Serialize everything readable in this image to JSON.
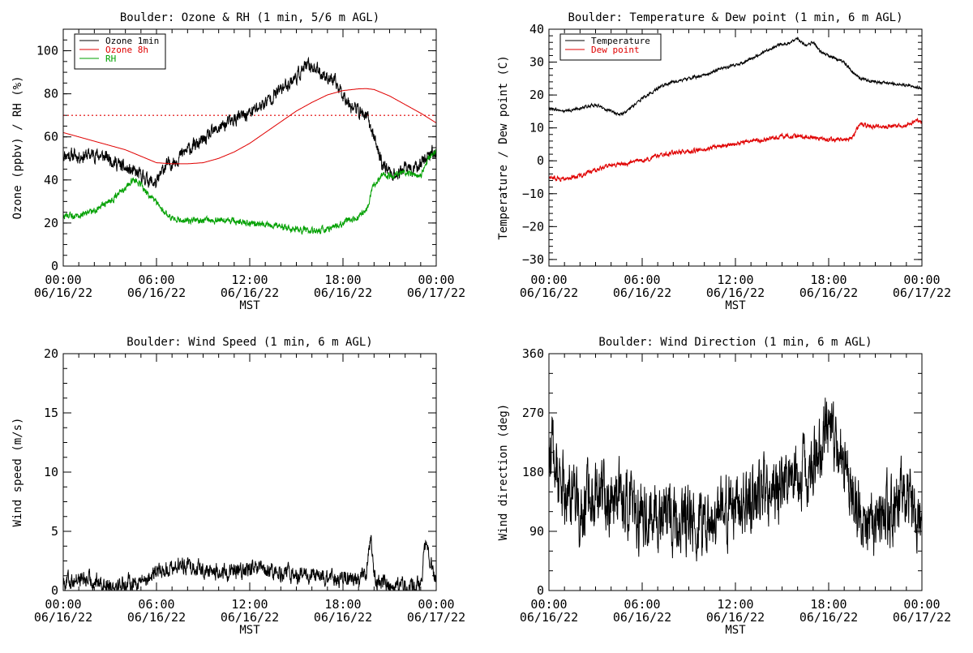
{
  "charts": [
    {
      "title": "Boulder: Ozone & RH (1 min, 5/6 m AGL)",
      "ylabel": "Ozone (ppbv) / RH (%)",
      "xlabel": "MST",
      "yticks": [
        "0",
        "20",
        "40",
        "60",
        "80",
        "100"
      ],
      "xticks": [
        {
          "time": "00:00",
          "date": "06/16/22"
        },
        {
          "time": "06:00",
          "date": "06/16/22"
        },
        {
          "time": "12:00",
          "date": "06/16/22"
        },
        {
          "time": "18:00",
          "date": "06/16/22"
        },
        {
          "time": "00:00",
          "date": "06/17/22"
        }
      ],
      "legend": [
        {
          "label": "Ozone 1min",
          "color": "#000000"
        },
        {
          "label": "Ozone 8h",
          "color": "#e00000"
        },
        {
          "label": "RH",
          "color": "#00a000"
        }
      ]
    },
    {
      "title": "Boulder: Temperature & Dew point (1 min, 6 m AGL)",
      "ylabel": "Temperature / Dew point (C)",
      "xlabel": "MST",
      "yticks": [
        "−30",
        "−20",
        "−10",
        "0",
        "10",
        "20",
        "30",
        "40"
      ],
      "xticks": [
        {
          "time": "00:00",
          "date": "06/16/22"
        },
        {
          "time": "06:00",
          "date": "06/16/22"
        },
        {
          "time": "12:00",
          "date": "06/16/22"
        },
        {
          "time": "18:00",
          "date": "06/16/22"
        },
        {
          "time": "00:00",
          "date": "06/17/22"
        }
      ],
      "legend": [
        {
          "label": "Temperature",
          "color": "#000000"
        },
        {
          "label": "Dew point",
          "color": "#e00000"
        }
      ]
    },
    {
      "title": "Boulder: Wind Speed (1 min, 6 m AGL)",
      "ylabel": "Wind speed (m/s)",
      "xlabel": "MST",
      "yticks": [
        "0",
        "5",
        "10",
        "15",
        "20"
      ],
      "xticks": [
        {
          "time": "00:00",
          "date": "06/16/22"
        },
        {
          "time": "06:00",
          "date": "06/16/22"
        },
        {
          "time": "12:00",
          "date": "06/16/22"
        },
        {
          "time": "18:00",
          "date": "06/16/22"
        },
        {
          "time": "00:00",
          "date": "06/17/22"
        }
      ],
      "legend": []
    },
    {
      "title": "Boulder: Wind Direction (1 min, 6 m AGL)",
      "ylabel": "Wind direction (deg)",
      "xlabel": "MST",
      "yticks": [
        "0",
        "90",
        "180",
        "270",
        "360"
      ],
      "xticks": [
        {
          "time": "00:00",
          "date": "06/16/22"
        },
        {
          "time": "06:00",
          "date": "06/16/22"
        },
        {
          "time": "12:00",
          "date": "06/16/22"
        },
        {
          "time": "18:00",
          "date": "06/16/22"
        },
        {
          "time": "00:00",
          "date": "06/17/22"
        }
      ],
      "legend": []
    }
  ],
  "chart_data": [
    {
      "type": "line",
      "title": "Boulder: Ozone & RH (1 min, 5/6 m AGL)",
      "xlabel": "MST",
      "ylabel": "Ozone (ppbv) / RH (%)",
      "x_unit": "hours",
      "xlim": [
        0,
        24
      ],
      "ylim": [
        0,
        110
      ],
      "grid": false,
      "legend_position": "top-left",
      "reference_lines": [
        {
          "y": 70,
          "color": "#e00000",
          "style": "dotted"
        }
      ],
      "series": [
        {
          "name": "Ozone 1min",
          "color": "#000000",
          "noise": 2.5,
          "x": [
            0,
            1,
            2,
            3,
            4,
            5,
            5.5,
            6,
            6.5,
            7,
            8,
            9,
            10,
            11,
            12,
            13,
            14,
            15,
            15.5,
            16,
            16.5,
            17,
            17.5,
            18,
            18.5,
            19,
            19.5,
            20,
            20.5,
            21,
            21.5,
            22,
            22.5,
            23,
            23.5,
            24
          ],
          "y": [
            52,
            51,
            52,
            50,
            45,
            42,
            40,
            38,
            46,
            48,
            54,
            58,
            64,
            68,
            71,
            76,
            82,
            88,
            92,
            93,
            90,
            88,
            85,
            80,
            75,
            72,
            70,
            60,
            48,
            44,
            42,
            46,
            44,
            48,
            52,
            53
          ]
        },
        {
          "name": "Ozone 8h",
          "color": "#e00000",
          "noise": 0,
          "x": [
            0,
            1,
            2,
            3,
            4,
            5,
            6,
            7,
            8,
            9,
            10,
            11,
            12,
            13,
            14,
            15,
            16,
            17,
            18,
            19,
            19.5,
            20,
            21,
            22,
            23,
            24
          ],
          "y": [
            62,
            60,
            58,
            56,
            54,
            51,
            48,
            47.5,
            47.5,
            48,
            50,
            53,
            57,
            62,
            67,
            72,
            76,
            79.5,
            81.5,
            82.3,
            82.4,
            82,
            79,
            75,
            71,
            66.5
          ]
        },
        {
          "name": "RH",
          "color": "#00a000",
          "noise": 1.2,
          "x": [
            0,
            1,
            2,
            3,
            3.5,
            4,
            4.5,
            5,
            5.5,
            6,
            6.5,
            7,
            8,
            9,
            10,
            11,
            12,
            13,
            14,
            15,
            16,
            17,
            18,
            19,
            19.5,
            20,
            20.5,
            21,
            22,
            23,
            23.5,
            24
          ],
          "y": [
            23,
            24,
            26,
            30,
            33,
            36,
            40,
            38,
            33,
            29,
            25,
            22,
            21,
            21,
            21,
            21,
            20,
            19,
            18,
            17,
            16,
            17,
            20,
            23,
            26,
            38,
            42,
            42,
            43,
            42,
            50,
            53
          ]
        }
      ]
    },
    {
      "type": "line",
      "title": "Boulder: Temperature & Dew point (1 min, 6 m AGL)",
      "xlabel": "MST",
      "ylabel": "Temperature / Dew point (C)",
      "x_unit": "hours",
      "xlim": [
        0,
        24
      ],
      "ylim": [
        -32,
        40
      ],
      "grid": false,
      "legend_position": "top-left",
      "series": [
        {
          "name": "Temperature",
          "color": "#000000",
          "noise": 0.35,
          "x": [
            0,
            1,
            2,
            3,
            4,
            4.5,
            5,
            6,
            7,
            8,
            9,
            10,
            11,
            12,
            13,
            14,
            15,
            15.5,
            16,
            16.5,
            17,
            17.5,
            18,
            19,
            19.5,
            20,
            21,
            22,
            23,
            24
          ],
          "y": [
            16,
            15,
            16,
            17,
            15,
            14,
            15,
            19,
            22,
            24,
            25,
            26,
            28,
            29,
            31,
            33.5,
            35.5,
            36,
            37,
            35,
            36,
            33,
            32,
            30,
            27,
            25,
            24,
            23.5,
            23,
            22
          ]
        },
        {
          "name": "Dew point",
          "color": "#e00000",
          "noise": 0.5,
          "x": [
            0,
            1,
            2,
            3,
            4,
            5,
            5.5,
            6,
            7,
            8,
            9,
            10,
            11,
            12,
            13,
            14,
            15,
            16,
            17,
            18,
            19,
            19.5,
            20,
            21,
            22,
            23,
            23.5,
            24
          ],
          "y": [
            -5,
            -5.5,
            -4.5,
            -3,
            -1,
            -1,
            0,
            0,
            1.5,
            2.5,
            3,
            3.5,
            4.5,
            5,
            6,
            6.5,
            7.5,
            7.5,
            7,
            6.5,
            6.5,
            7,
            11,
            10.5,
            10.5,
            10.5,
            12,
            12
          ]
        }
      ]
    },
    {
      "type": "line",
      "title": "Boulder: Wind Speed (1 min, 6 m AGL)",
      "xlabel": "MST",
      "ylabel": "Wind speed (m/s)",
      "x_unit": "hours",
      "xlim": [
        0,
        24
      ],
      "ylim": [
        0,
        20
      ],
      "grid": false,
      "series": [
        {
          "name": "",
          "color": "#000000",
          "noise": 0.55,
          "x": [
            0,
            1,
            2,
            3,
            4,
            5,
            6,
            7,
            8,
            9,
            10,
            11,
            12,
            13,
            14,
            15,
            16,
            17,
            18,
            19,
            19.5,
            19.8,
            20,
            21,
            22,
            22.5,
            23,
            23.3,
            23.6,
            24
          ],
          "y": [
            0.8,
            1,
            0.8,
            0.5,
            0.6,
            0.8,
            1.5,
            2,
            2.2,
            1.8,
            1.5,
            1.5,
            1.8,
            1.6,
            1.5,
            1.3,
            1.2,
            1.0,
            1.0,
            1.0,
            1.5,
            4.5,
            1.0,
            0.5,
            0.4,
            0.3,
            0.5,
            4.0,
            2.5,
            0.5
          ]
        }
      ]
    },
    {
      "type": "line",
      "title": "Boulder: Wind Direction (1 min, 6 m AGL)",
      "xlabel": "MST",
      "ylabel": "Wind direction (deg)",
      "x_unit": "hours",
      "xlim": [
        0,
        24
      ],
      "ylim": [
        0,
        360
      ],
      "grid": false,
      "series": [
        {
          "name": "",
          "color": "#000000",
          "noise": 40,
          "x": [
            0,
            0.5,
            1,
            2,
            3,
            4,
            5,
            6,
            7,
            8,
            9,
            10,
            11,
            12,
            13,
            14,
            15,
            16,
            17,
            17.5,
            18,
            18.5,
            19,
            20,
            21,
            22,
            23,
            23.5,
            24
          ],
          "y": [
            230,
            180,
            150,
            120,
            150,
            140,
            130,
            110,
            110,
            100,
            105,
            110,
            120,
            130,
            130,
            150,
            160,
            170,
            200,
            230,
            240,
            220,
            200,
            120,
            100,
            120,
            160,
            100,
            120
          ]
        }
      ]
    }
  ]
}
